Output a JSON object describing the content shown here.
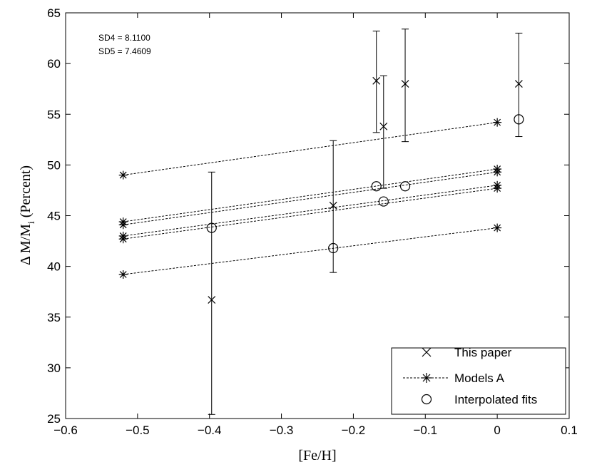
{
  "chart_data": {
    "type": "scatter",
    "xlabel": "[Fe/H]",
    "ylabel_main": "Δ M/M",
    "ylabel_sub": "i",
    "ylabel_suffix": "(Percent)",
    "xlim": [
      -0.6,
      0.1
    ],
    "ylim": [
      25,
      65
    ],
    "xticks": [
      -0.6,
      -0.5,
      -0.4,
      -0.3,
      -0.2,
      -0.1,
      0,
      0.1
    ],
    "xtick_labels": [
      "−0.6",
      "−0.5",
      "−0.4",
      "−0.3",
      "−0.2",
      "−0.1",
      "0",
      "0.1"
    ],
    "yticks": [
      25,
      30,
      35,
      40,
      45,
      50,
      55,
      60,
      65
    ],
    "ytick_labels": [
      "25",
      "30",
      "35",
      "40",
      "45",
      "50",
      "55",
      "60",
      "65"
    ],
    "grid": false,
    "legend_position": "bottom-right",
    "annotations": [
      "SD4 = 8.1100",
      "SD5 = 7.4609"
    ],
    "this_paper": {
      "legend": "This paper",
      "x": [
        -0.397,
        -0.228,
        -0.168,
        -0.158,
        -0.128,
        0.03
      ],
      "y": [
        36.7,
        46.0,
        58.3,
        53.8,
        58.0,
        58.0
      ],
      "err_low": [
        25.4,
        39.4,
        53.2,
        47.7,
        52.3,
        52.8
      ],
      "err_high": [
        49.3,
        52.4,
        63.2,
        58.8,
        63.4,
        63.0
      ]
    },
    "models_a": {
      "legend": "Models A",
      "x": [
        -0.52,
        0
      ],
      "lines": [
        [
          49.0,
          54.2
        ],
        [
          44.4,
          49.6
        ],
        [
          44.1,
          49.3
        ],
        [
          43.0,
          48.0
        ],
        [
          42.7,
          47.7
        ],
        [
          39.2,
          43.8
        ]
      ]
    },
    "interpolated_fits": {
      "legend": "Interpolated fits",
      "x": [
        -0.397,
        -0.228,
        -0.168,
        -0.158,
        -0.128,
        0.03
      ],
      "y": [
        43.8,
        41.8,
        47.9,
        46.4,
        47.9,
        54.5
      ]
    }
  }
}
